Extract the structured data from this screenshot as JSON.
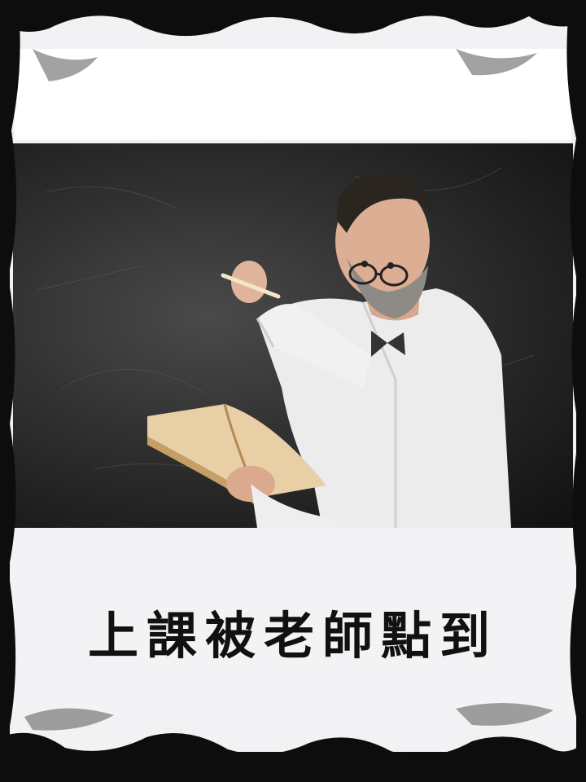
{
  "caption": "上課被老師點到",
  "photo": {
    "subject": "teacher-at-chalkboard"
  },
  "colors": {
    "frame": "#0d0d0d",
    "paper": "#f2f2f4",
    "chalkboard": "#333333",
    "shirt": "#f4f4f4",
    "text": "#111111"
  }
}
